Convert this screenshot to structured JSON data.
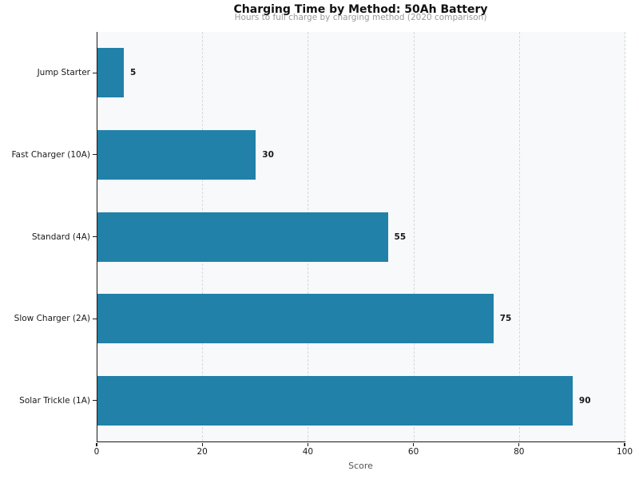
{
  "chart_data": {
    "type": "bar",
    "orientation": "horizontal",
    "title": "Charging Time by Method: 50Ah Battery",
    "subtitle": "Hours to full charge by charging method (2020 comparison)",
    "xlabel": "Score",
    "ylabel": "",
    "categories": [
      "Jump Starter",
      "Fast Charger (10A)",
      "Standard (4A)",
      "Slow Charger (2A)",
      "Solar Trickle (1A)"
    ],
    "values": [
      5,
      30,
      55,
      75,
      90
    ],
    "value_labels": [
      "5",
      "30",
      "55",
      "75",
      "90"
    ],
    "xlim": [
      0,
      100
    ],
    "xticks": [
      0,
      20,
      40,
      60,
      80,
      100
    ],
    "grid": "vertical-dashed",
    "legend": "none"
  },
  "colors": {
    "bar": "#2181a8",
    "plot_background": "#f7f9fa",
    "gridline": "#d4d9de",
    "spine": "#1a1a1a",
    "title": "#111111",
    "subtitle": "#9a9a9a",
    "tick_label": "#1a1a1a",
    "axis_title": "#555555",
    "value_label": "#1a1a1a"
  }
}
